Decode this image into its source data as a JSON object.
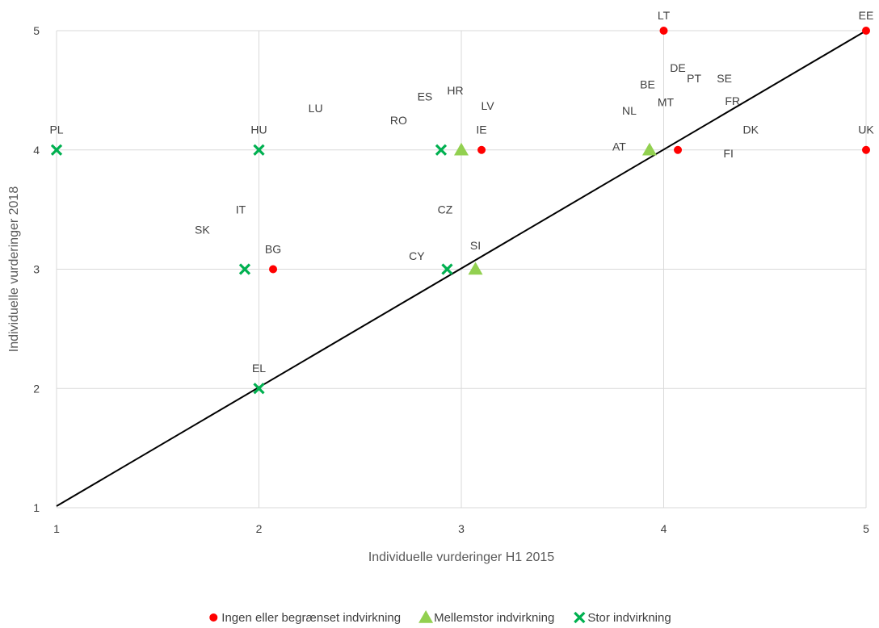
{
  "chart_data": {
    "type": "scatter",
    "xlabel": "Individuelle vurderinger H1 2015",
    "ylabel": "Individuelle vurderinger  2018",
    "xlim": [
      1,
      5
    ],
    "ylim": [
      1,
      5
    ],
    "x_ticks": [
      "1",
      "2",
      "3",
      "4",
      "5"
    ],
    "y_ticks": [
      "1",
      "2",
      "3",
      "4",
      "5"
    ],
    "grid": true,
    "legend_position": "bottom",
    "reference_line": {
      "from": [
        1,
        1
      ],
      "to": [
        5,
        5
      ],
      "color": "#000000"
    },
    "series": [
      {
        "name": "Ingen eller begrænset indvirkning",
        "marker": "circle",
        "color": "#ff0000",
        "points": [
          [
            4,
            5
          ],
          [
            5,
            5
          ],
          [
            3.1,
            4
          ],
          [
            4.07,
            4
          ],
          [
            5,
            4
          ],
          [
            2.07,
            3
          ]
        ]
      },
      {
        "name": "Mellemstor indvirkning",
        "marker": "triangle",
        "color": "#92d050",
        "points": [
          [
            3,
            4
          ],
          [
            3.93,
            4
          ],
          [
            3.07,
            3
          ]
        ]
      },
      {
        "name": "Stor indvirkning",
        "marker": "x",
        "color": "#00b050",
        "points": [
          [
            1,
            4
          ],
          [
            2,
            4
          ],
          [
            2.9,
            4
          ],
          [
            1.93,
            3
          ],
          [
            2.93,
            3
          ],
          [
            2,
            2
          ]
        ]
      }
    ],
    "annotations": [
      {
        "text": "LT",
        "x": 4.0,
        "y": 5.13
      },
      {
        "text": "EE",
        "x": 5.0,
        "y": 5.13
      },
      {
        "text": "DE",
        "x": 4.07,
        "y": 4.69
      },
      {
        "text": "PT",
        "x": 4.15,
        "y": 4.6
      },
      {
        "text": "SE",
        "x": 4.3,
        "y": 4.6
      },
      {
        "text": "BE",
        "x": 3.92,
        "y": 4.55
      },
      {
        "text": "HR",
        "x": 2.97,
        "y": 4.5
      },
      {
        "text": "ES",
        "x": 2.82,
        "y": 4.45
      },
      {
        "text": "FR",
        "x": 4.34,
        "y": 4.41
      },
      {
        "text": "MT",
        "x": 4.01,
        "y": 4.4
      },
      {
        "text": "LU",
        "x": 2.28,
        "y": 4.35
      },
      {
        "text": "LV",
        "x": 3.13,
        "y": 4.37
      },
      {
        "text": "NL",
        "x": 3.83,
        "y": 4.33
      },
      {
        "text": "RO",
        "x": 2.69,
        "y": 4.25
      },
      {
        "text": "PL",
        "x": 1.0,
        "y": 4.17
      },
      {
        "text": "HU",
        "x": 2.0,
        "y": 4.17
      },
      {
        "text": "IE",
        "x": 3.1,
        "y": 4.17
      },
      {
        "text": "DK",
        "x": 4.43,
        "y": 4.17
      },
      {
        "text": "UK",
        "x": 5.0,
        "y": 4.17
      },
      {
        "text": "AT",
        "x": 3.78,
        "y": 4.03
      },
      {
        "text": "FI",
        "x": 4.32,
        "y": 3.97
      },
      {
        "text": "IT",
        "x": 1.91,
        "y": 3.5
      },
      {
        "text": "CZ",
        "x": 2.92,
        "y": 3.5
      },
      {
        "text": "SK",
        "x": 1.72,
        "y": 3.33
      },
      {
        "text": "BG",
        "x": 2.07,
        "y": 3.17
      },
      {
        "text": "SI",
        "x": 3.07,
        "y": 3.2
      },
      {
        "text": "CY",
        "x": 2.78,
        "y": 3.11
      },
      {
        "text": "EL",
        "x": 2.0,
        "y": 2.17
      }
    ]
  }
}
